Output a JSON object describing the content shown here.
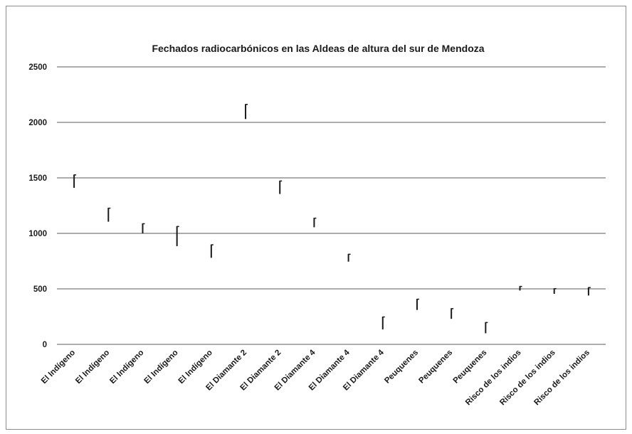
{
  "chart_data": {
    "type": "stock",
    "title": "Fechados radiocarbónicos en las Aldeas de altura del sur de Mendoza",
    "xlabel": "",
    "ylabel": "",
    "ylim": [
      0,
      2500
    ],
    "yticks": [
      0,
      500,
      1000,
      1500,
      2000,
      2500
    ],
    "grid": true,
    "legend": "none",
    "categories": [
      "El Indígeno",
      "El Indígeno",
      "El Indígeno",
      "El Indígeno",
      "El Indígeno",
      "El Diamante 2",
      "El Diamante 2",
      "El Diamante 4",
      "El Diamante 4",
      "El Diamante 4",
      "Peuquenes",
      "Peuquenes",
      "Peuquenes",
      "Risco de los indios",
      "Risco de los indios",
      "Risco de los indios"
    ],
    "high": [
      1530,
      1230,
      1090,
      1065,
      900,
      2165,
      1475,
      1140,
      815,
      250,
      410,
      325,
      200,
      525,
      505,
      515
    ],
    "low": [
      1410,
      1105,
      1000,
      885,
      780,
      2030,
      1355,
      1055,
      745,
      135,
      310,
      230,
      100,
      485,
      455,
      440
    ],
    "colors": {
      "bars": "#1a1a1a",
      "grid": "#7a7a7a",
      "text": "#1a1a1a",
      "frame": "#8c8c8c"
    }
  }
}
